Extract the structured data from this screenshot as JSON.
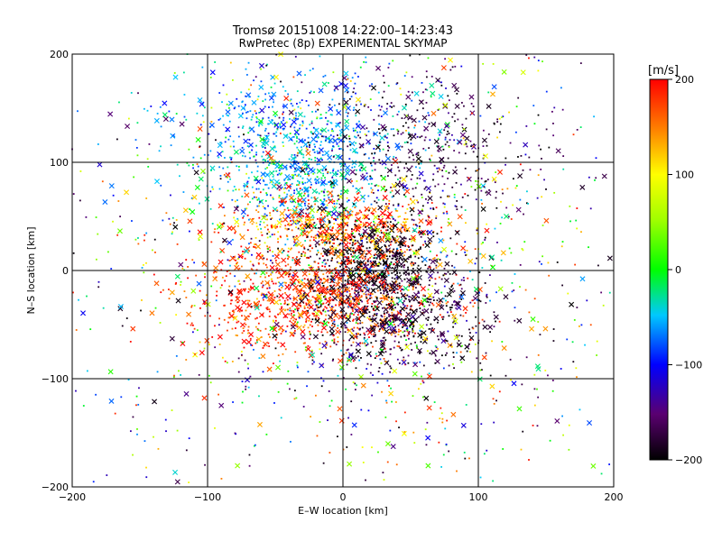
{
  "chart_data": {
    "type": "scatter",
    "title": "Tromsø 20151008 14:22:00–14:23:43",
    "subtitle": "RwPretec (8p) EXPERIMENTAL SKYMAP",
    "xlabel": "E–W location [km]",
    "ylabel": "N–S location [km]",
    "xlim": [
      -200,
      200
    ],
    "ylim": [
      -200,
      200
    ],
    "x_ticks": [
      "-200",
      "-100",
      "0",
      "100",
      "200"
    ],
    "y_ticks": [
      "-200",
      "-100",
      "0",
      "100",
      "200"
    ],
    "grid": true,
    "markers": [
      "x",
      "dot"
    ],
    "colorbar": {
      "label": "[m/s]",
      "range": [
        -200,
        200
      ],
      "ticks": [
        "200",
        "100",
        "0",
        "-100",
        "-200"
      ],
      "colormap": "rainbow: black (-200) → purple → blue (-100) → cyan → green (0) → yellow (100) → orange → red (200)"
    },
    "clusters": [
      {
        "center": [
          -40,
          130
        ],
        "spread_km": [
          45,
          30
        ],
        "velocity_mean": -60,
        "velocity_sd": 25
      },
      {
        "center": [
          -30,
          80
        ],
        "spread_km": [
          30,
          20
        ],
        "velocity_mean": -50,
        "velocity_sd": 30
      },
      {
        "center": [
          -10,
          40
        ],
        "spread_km": [
          40,
          15
        ],
        "velocity_mean": 160,
        "velocity_sd": 40
      },
      {
        "center": [
          20,
          10
        ],
        "spread_km": [
          25,
          20
        ],
        "velocity_mean": -190,
        "velocity_sd": 15
      },
      {
        "center": [
          -20,
          -25
        ],
        "spread_km": [
          45,
          25
        ],
        "velocity_mean": 180,
        "velocity_sd": 30
      },
      {
        "center": [
          40,
          -40
        ],
        "spread_km": [
          35,
          25
        ],
        "velocity_mean": -180,
        "velocity_sd": 25
      },
      {
        "center": [
          60,
          110
        ],
        "spread_km": [
          40,
          40
        ],
        "velocity_mean": -170,
        "velocity_sd": 30
      },
      {
        "center": [
          0,
          0
        ],
        "spread_km": [
          110,
          110
        ],
        "velocity_mean": 0,
        "velocity_sd": 200
      }
    ]
  }
}
